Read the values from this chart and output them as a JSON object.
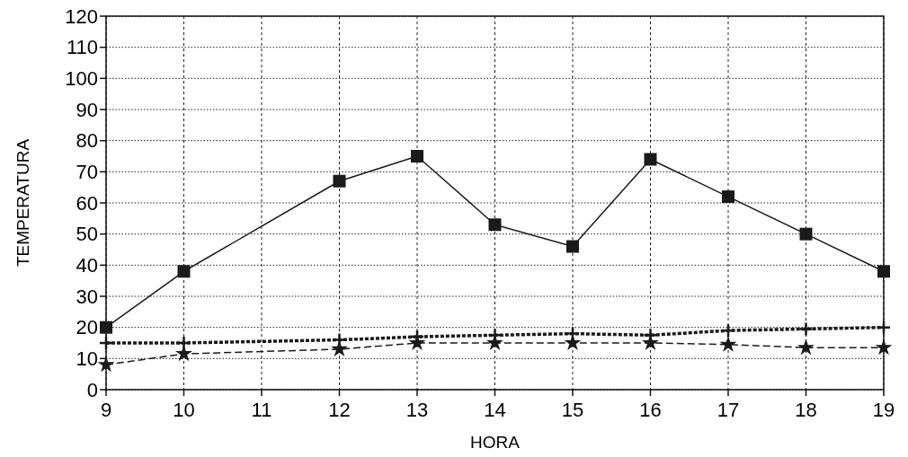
{
  "chart_data": {
    "type": "line",
    "xlabel": "HORA",
    "ylabel": "TEMPERATURA",
    "xlim": [
      9,
      19
    ],
    "xticks": [
      9,
      10,
      11,
      12,
      13,
      14,
      15,
      16,
      17,
      18,
      19
    ],
    "ylim": [
      0,
      120
    ],
    "yticks": [
      0,
      10,
      20,
      30,
      40,
      50,
      60,
      70,
      80,
      90,
      100,
      110,
      120
    ],
    "grid": true,
    "x": [
      9,
      10,
      12,
      13,
      14,
      15,
      16,
      17,
      18,
      19
    ],
    "series": [
      {
        "color": "#1a1a1a",
        "marker": "square",
        "line_style": "solid",
        "values": [
          20,
          38,
          67,
          75,
          53,
          46,
          74,
          62,
          50,
          38
        ]
      },
      {
        "color": "#1a1a1a",
        "marker": "cross",
        "line_style": "dotted",
        "values": [
          15,
          15,
          16,
          17,
          17.5,
          18,
          17.5,
          19,
          19.5,
          20
        ]
      },
      {
        "color": "#1a1a1a",
        "marker": "star",
        "line_style": "dashed",
        "values": [
          8,
          11.5,
          13,
          15,
          15,
          15,
          15,
          14.5,
          13.5,
          13.5
        ]
      }
    ]
  }
}
